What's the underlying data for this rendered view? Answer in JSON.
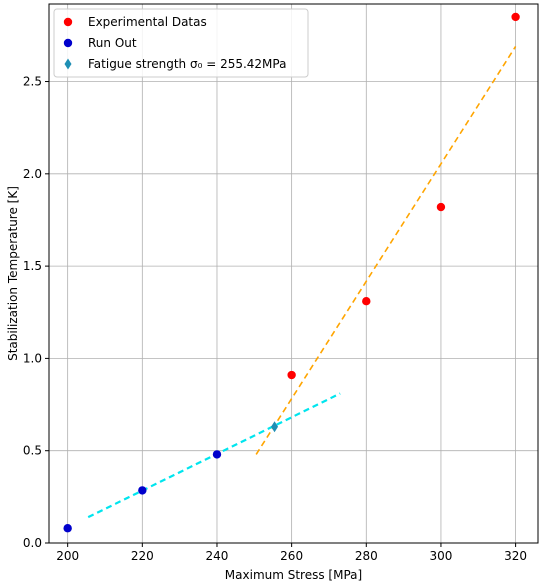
{
  "chart_data": {
    "type": "scatter",
    "xlabel": "Maximum Stress [MPa]",
    "ylabel": "Stabilization Temperature [K]",
    "xlim": [
      195,
      326
    ],
    "ylim": [
      0.0,
      2.92
    ],
    "x_ticks": [
      200,
      220,
      240,
      260,
      280,
      300,
      320
    ],
    "y_ticks": [
      0.0,
      0.5,
      1.0,
      1.5,
      2.0,
      2.5
    ],
    "x_tick_labels": [
      "200",
      "220",
      "240",
      "260",
      "280",
      "300",
      "320"
    ],
    "y_tick_labels": [
      "0.0",
      "0.5",
      "1.0",
      "1.5",
      "2.0",
      "2.5"
    ],
    "grid": true,
    "legend_position": "top-left",
    "series": [
      {
        "name": "Experimental Datas",
        "kind": "scatter",
        "marker": "circle",
        "color": "#ff0000",
        "points": [
          [
            260,
            0.91
          ],
          [
            280,
            1.31
          ],
          [
            300,
            1.82
          ],
          [
            320,
            2.85
          ]
        ]
      },
      {
        "name": "Run Out",
        "kind": "scatter",
        "marker": "circle",
        "color": "#0000cc",
        "points": [
          [
            200,
            0.08
          ],
          [
            220,
            0.285
          ],
          [
            240,
            0.48
          ]
        ]
      },
      {
        "name": "Fatigue strength σ₀ = 255.42MPa",
        "kind": "scatter",
        "marker": "diamond",
        "color": "#1f8fb4",
        "points": [
          [
            255.42,
            0.63
          ]
        ]
      },
      {
        "kind": "line",
        "style": "dashed",
        "color": "#00e5ee",
        "points": [
          [
            205.5,
            0.14
          ],
          [
            273,
            0.81
          ]
        ]
      },
      {
        "kind": "line",
        "style": "dashed",
        "color": "#ffa500",
        "points": [
          [
            250.5,
            0.48
          ],
          [
            320,
            2.69
          ]
        ]
      }
    ],
    "legend": [
      {
        "label": "Experimental Datas",
        "marker": "circle",
        "color": "#ff0000"
      },
      {
        "label": "Run Out",
        "marker": "circle",
        "color": "#0000cc"
      },
      {
        "label": "Fatigue strength σ₀ = 255.42MPa",
        "marker": "diamond",
        "color": "#1f8fb4"
      }
    ]
  }
}
